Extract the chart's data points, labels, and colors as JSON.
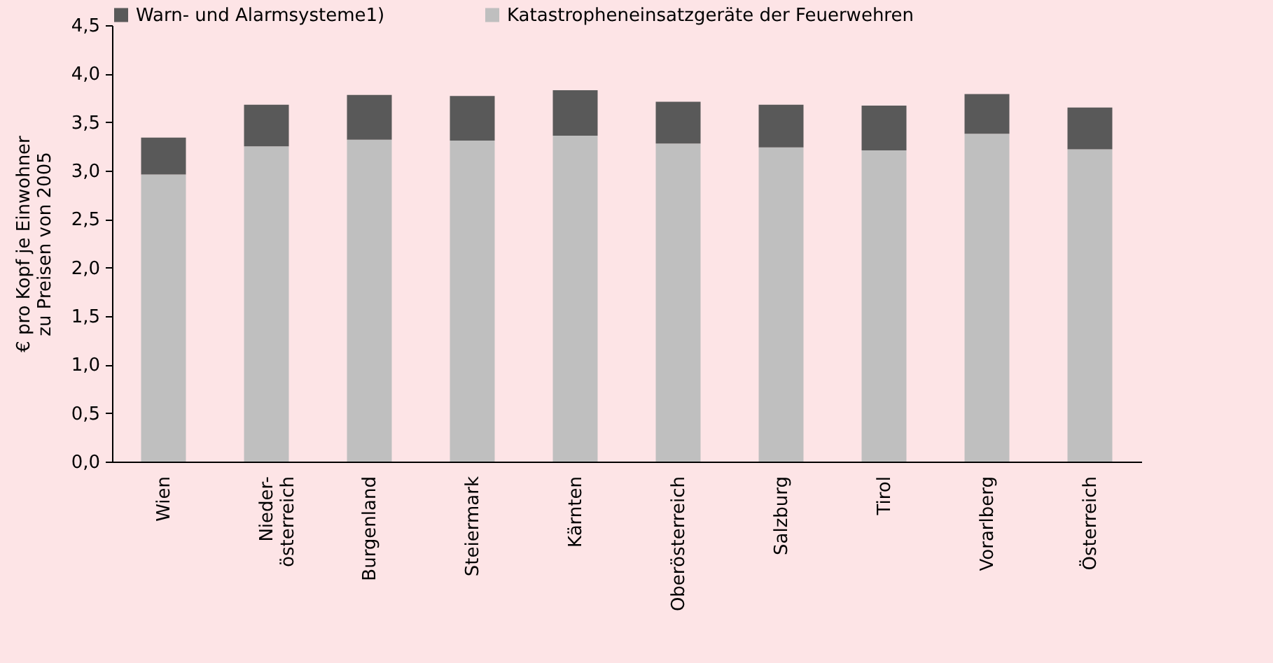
{
  "chart_data": {
    "type": "bar",
    "stacked": true,
    "ylabel": "€ pro Kopf je Einwohner zu Preisen von 2005",
    "categories": [
      "Wien",
      "Nieder-österreich",
      "Burgenland",
      "Steiermark",
      "Kärnten",
      "Oberösterreich",
      "Salzburg",
      "Tirol",
      "Vorarlberg",
      "Österreich"
    ],
    "series": [
      {
        "name": "Katastropheneinsatzgeräte der Feuerwehren",
        "color": "#bfbfbf",
        "values": [
          2.96,
          3.25,
          3.32,
          3.31,
          3.36,
          3.28,
          3.24,
          3.21,
          3.38,
          3.22
        ]
      },
      {
        "name": "Warn- und Alarmsysteme1)",
        "color": "#595959",
        "values": [
          0.38,
          0.43,
          0.46,
          0.46,
          0.47,
          0.43,
          0.44,
          0.46,
          0.41,
          0.43
        ]
      }
    ],
    "ylim": [
      0,
      4.5
    ],
    "yticks": [
      {
        "value": 0,
        "label": "0,0"
      },
      {
        "value": 0.5,
        "label": "0,5"
      },
      {
        "value": 1,
        "label": "1,0"
      },
      {
        "value": 1.5,
        "label": "1,5"
      },
      {
        "value": 2,
        "label": "2,0"
      },
      {
        "value": 2.5,
        "label": "2,5"
      },
      {
        "value": 3,
        "label": "3,0"
      },
      {
        "value": 3.5,
        "label": "3,5"
      },
      {
        "value": 4,
        "label": "4,0"
      },
      {
        "value": 4.5,
        "label": "4,5"
      }
    ],
    "grid": false,
    "legend": "top"
  }
}
